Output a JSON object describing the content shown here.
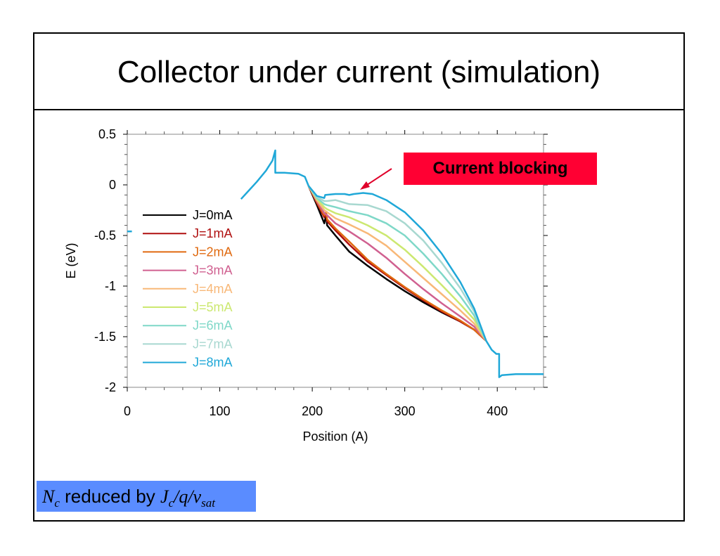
{
  "slide": {
    "title": "Collector under current (simulation)"
  },
  "callout": {
    "label": "Current blocking",
    "color": "#ff0033"
  },
  "note": {
    "symbol_main": "N",
    "symbol_sub": "c",
    "text": "reduced by",
    "formula_a": "J",
    "formula_a_sub": "c",
    "formula_b": "/q/v",
    "formula_b_sub": "sat",
    "color": "#5a8cff"
  },
  "chart_data": {
    "type": "line",
    "xlabel": "Position (A)",
    "ylabel": "E (eV)",
    "xlim": [
      0,
      450
    ],
    "ylim": [
      -2,
      0.5
    ],
    "xticks": [
      0,
      100,
      200,
      300,
      400
    ],
    "yticks": [
      0.5,
      0,
      -0.5,
      -1,
      -1.5,
      -2
    ],
    "ytick_labels": [
      "0.5",
      "0",
      "-0.5",
      "-1",
      "-1.5",
      "-2"
    ],
    "grid": false,
    "legend_position": "left",
    "common_segments": [
      [
        [
          123,
          -0.14
        ],
        [
          130,
          -0.07
        ],
        [
          140,
          0.03
        ],
        [
          150,
          0.14
        ],
        [
          157,
          0.24
        ],
        [
          160,
          0.34
        ],
        [
          160,
          0.12
        ],
        [
          170,
          0.12
        ],
        [
          185,
          0.11
        ],
        [
          192,
          0.08
        ],
        [
          196,
          -0.01
        ]
      ],
      [
        [
          388,
          -1.54
        ],
        [
          394,
          -1.63
        ],
        [
          399,
          -1.67
        ],
        [
          402,
          -1.67
        ],
        [
          402,
          -1.9
        ],
        [
          405,
          -1.88
        ],
        [
          420,
          -1.87
        ],
        [
          450,
          -1.87
        ]
      ],
      [
        [
          0,
          -0.46
        ],
        [
          5,
          -0.46
        ]
      ]
    ],
    "series": [
      {
        "name": "J=0mA",
        "color": "#000000",
        "values": [
          [
            196,
            -0.01
          ],
          [
            205,
            -0.2
          ],
          [
            213,
            -0.38
          ],
          [
            215,
            -0.3
          ],
          [
            216,
            -0.4
          ],
          [
            225,
            -0.5
          ],
          [
            240,
            -0.66
          ],
          [
            260,
            -0.8
          ],
          [
            280,
            -0.93
          ],
          [
            300,
            -1.05
          ],
          [
            320,
            -1.16
          ],
          [
            340,
            -1.26
          ],
          [
            360,
            -1.35
          ],
          [
            375,
            -1.43
          ],
          [
            388,
            -1.54
          ]
        ]
      },
      {
        "name": "J=1mA",
        "color": "#b01010",
        "values": [
          [
            196,
            -0.01
          ],
          [
            205,
            -0.18
          ],
          [
            213,
            -0.32
          ],
          [
            215,
            -0.28
          ],
          [
            216,
            -0.36
          ],
          [
            225,
            -0.45
          ],
          [
            240,
            -0.59
          ],
          [
            260,
            -0.76
          ],
          [
            280,
            -0.89
          ],
          [
            300,
            -1.02
          ],
          [
            320,
            -1.14
          ],
          [
            340,
            -1.25
          ],
          [
            360,
            -1.35
          ],
          [
            375,
            -1.43
          ],
          [
            388,
            -1.54
          ]
        ]
      },
      {
        "name": "J=2mA",
        "color": "#e06a10",
        "values": [
          [
            196,
            -0.01
          ],
          [
            205,
            -0.17
          ],
          [
            213,
            -0.3
          ],
          [
            215,
            -0.27
          ],
          [
            216,
            -0.34
          ],
          [
            225,
            -0.43
          ],
          [
            240,
            -0.56
          ],
          [
            260,
            -0.74
          ],
          [
            280,
            -0.88
          ],
          [
            300,
            -1.01
          ],
          [
            320,
            -1.13
          ],
          [
            340,
            -1.24
          ],
          [
            360,
            -1.34
          ],
          [
            375,
            -1.43
          ],
          [
            388,
            -1.54
          ]
        ]
      },
      {
        "name": "J=3mA",
        "color": "#d06090",
        "values": [
          [
            196,
            -0.01
          ],
          [
            205,
            -0.16
          ],
          [
            213,
            -0.28
          ],
          [
            216,
            -0.3
          ],
          [
            225,
            -0.38
          ],
          [
            240,
            -0.46
          ],
          [
            260,
            -0.58
          ],
          [
            280,
            -0.72
          ],
          [
            300,
            -0.88
          ],
          [
            320,
            -1.03
          ],
          [
            340,
            -1.17
          ],
          [
            360,
            -1.3
          ],
          [
            375,
            -1.4
          ],
          [
            388,
            -1.54
          ]
        ]
      },
      {
        "name": "J=4mA",
        "color": "#f8b878",
        "values": [
          [
            196,
            -0.01
          ],
          [
            205,
            -0.15
          ],
          [
            213,
            -0.25
          ],
          [
            216,
            -0.27
          ],
          [
            225,
            -0.33
          ],
          [
            240,
            -0.39
          ],
          [
            260,
            -0.48
          ],
          [
            280,
            -0.6
          ],
          [
            300,
            -0.76
          ],
          [
            320,
            -0.92
          ],
          [
            340,
            -1.08
          ],
          [
            360,
            -1.24
          ],
          [
            375,
            -1.37
          ],
          [
            388,
            -1.54
          ]
        ]
      },
      {
        "name": "J=5mA",
        "color": "#cce870",
        "values": [
          [
            196,
            -0.01
          ],
          [
            205,
            -0.14
          ],
          [
            213,
            -0.22
          ],
          [
            216,
            -0.24
          ],
          [
            225,
            -0.28
          ],
          [
            240,
            -0.32
          ],
          [
            260,
            -0.4
          ],
          [
            280,
            -0.5
          ],
          [
            300,
            -0.64
          ],
          [
            320,
            -0.81
          ],
          [
            340,
            -0.99
          ],
          [
            360,
            -1.18
          ],
          [
            375,
            -1.33
          ],
          [
            388,
            -1.54
          ]
        ]
      },
      {
        "name": "J=6mA",
        "color": "#7fd8c8",
        "values": [
          [
            196,
            -0.01
          ],
          [
            205,
            -0.13
          ],
          [
            213,
            -0.19
          ],
          [
            216,
            -0.2
          ],
          [
            225,
            -0.22
          ],
          [
            240,
            -0.26
          ],
          [
            260,
            -0.3
          ],
          [
            280,
            -0.38
          ],
          [
            300,
            -0.5
          ],
          [
            320,
            -0.68
          ],
          [
            340,
            -0.88
          ],
          [
            360,
            -1.1
          ],
          [
            375,
            -1.29
          ],
          [
            388,
            -1.54
          ]
        ]
      },
      {
        "name": "J=7mA",
        "color": "#a8d8d0",
        "values": [
          [
            196,
            -0.01
          ],
          [
            205,
            -0.12
          ],
          [
            213,
            -0.16
          ],
          [
            216,
            -0.16
          ],
          [
            225,
            -0.15
          ],
          [
            240,
            -0.19
          ],
          [
            260,
            -0.2
          ],
          [
            280,
            -0.26
          ],
          [
            300,
            -0.38
          ],
          [
            320,
            -0.55
          ],
          [
            340,
            -0.77
          ],
          [
            360,
            -1.02
          ],
          [
            375,
            -1.25
          ],
          [
            388,
            -1.54
          ]
        ]
      },
      {
        "name": "J=8mA",
        "color": "#20a8d8",
        "values": [
          [
            196,
            -0.01
          ],
          [
            205,
            -0.11
          ],
          [
            213,
            -0.13
          ],
          [
            214,
            -0.1
          ],
          [
            225,
            -0.09
          ],
          [
            235,
            -0.09
          ],
          [
            240,
            -0.1
          ],
          [
            245,
            -0.09
          ],
          [
            255,
            -0.08
          ],
          [
            265,
            -0.09
          ],
          [
            280,
            -0.15
          ],
          [
            300,
            -0.27
          ],
          [
            320,
            -0.45
          ],
          [
            340,
            -0.68
          ],
          [
            360,
            -0.96
          ],
          [
            375,
            -1.22
          ],
          [
            388,
            -1.54
          ]
        ]
      }
    ]
  }
}
